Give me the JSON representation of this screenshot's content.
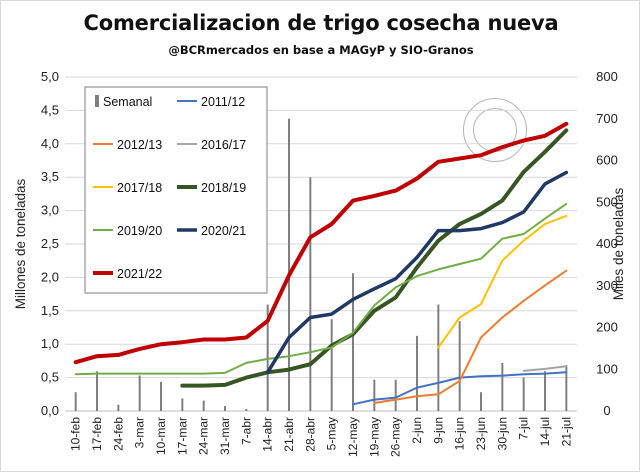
{
  "chart_data": {
    "type": "line",
    "title": "Comercializacion de trigo cosecha nueva",
    "subtitle": "@BCRmercados  en base a MAGyP y SIO-Granos",
    "ylabel": "Millones de toneladas",
    "y2label": "Miles de toneladas",
    "ylim": [
      0,
      5
    ],
    "y2lim": [
      0,
      800
    ],
    "yticks": [
      "0,0",
      "0,5",
      "1,0",
      "1,5",
      "2,0",
      "2,5",
      "3,0",
      "3,5",
      "4,0",
      "4,5",
      "5,0"
    ],
    "y2ticks": [
      "0",
      "100",
      "200",
      "300",
      "400",
      "500",
      "600",
      "700",
      "800"
    ],
    "categories": [
      "10-feb",
      "17-feb",
      "24-feb",
      "3-mar",
      "10-mar",
      "17-mar",
      "24-mar",
      "31-mar",
      "7-abr",
      "14-abr",
      "21-abr",
      "28-abr",
      "5-may",
      "12-may",
      "19-may",
      "26-may",
      "2-jun",
      "9-jun",
      "16-jun",
      "23-jun",
      "30-jun",
      "7-jul",
      "14-jul",
      "21-jul"
    ],
    "semanal": {
      "name": "Semanal",
      "axis": "right",
      "color": "#7f7f7f",
      "values": [
        45,
        95,
        15,
        85,
        70,
        30,
        25,
        12,
        5,
        255,
        700,
        560,
        220,
        330,
        75,
        75,
        180,
        255,
        215,
        45,
        115,
        80,
        95,
        110
      ]
    },
    "series": [
      {
        "name": "2011/12",
        "color": "#4472c4",
        "width": 2,
        "values": [
          null,
          null,
          null,
          null,
          null,
          null,
          null,
          null,
          null,
          null,
          null,
          null,
          null,
          0.1,
          0.17,
          0.2,
          0.35,
          0.42,
          0.5,
          0.52,
          0.53,
          0.55,
          0.56,
          0.58
        ]
      },
      {
        "name": "2012/13",
        "color": "#ed7d31",
        "width": 2,
        "values": [
          null,
          null,
          null,
          null,
          null,
          null,
          null,
          null,
          null,
          null,
          null,
          null,
          null,
          null,
          0.12,
          0.17,
          0.22,
          0.25,
          0.45,
          1.1,
          1.4,
          1.65,
          1.88,
          2.1
        ]
      },
      {
        "name": "2016/17",
        "color": "#a5a5a5",
        "width": 2,
        "values": [
          null,
          null,
          null,
          null,
          null,
          null,
          null,
          null,
          null,
          null,
          null,
          null,
          null,
          null,
          null,
          null,
          null,
          null,
          null,
          null,
          null,
          0.6,
          0.63,
          0.67
        ]
      },
      {
        "name": "2017/18",
        "color": "#ffc000",
        "width": 2,
        "values": [
          null,
          null,
          null,
          null,
          null,
          null,
          null,
          null,
          null,
          null,
          null,
          null,
          null,
          null,
          null,
          null,
          null,
          0.95,
          1.4,
          1.6,
          2.25,
          2.55,
          2.8,
          2.92
        ]
      },
      {
        "name": "2018/19",
        "color": "#375623",
        "width": 4,
        "values": [
          null,
          null,
          null,
          null,
          null,
          0.38,
          0.38,
          0.39,
          0.5,
          0.58,
          0.62,
          0.7,
          0.98,
          1.15,
          1.5,
          1.7,
          2.15,
          2.55,
          2.8,
          2.95,
          3.15,
          3.58,
          3.88,
          4.2
        ]
      },
      {
        "name": "2019/20",
        "color": "#70ad47",
        "width": 2,
        "values": [
          0.55,
          0.56,
          0.56,
          0.56,
          0.56,
          0.56,
          0.56,
          0.57,
          0.72,
          0.78,
          0.82,
          0.88,
          0.95,
          1.17,
          1.58,
          1.85,
          2.02,
          2.12,
          2.2,
          2.28,
          2.58,
          2.65,
          2.88,
          3.1
        ]
      },
      {
        "name": "2020/21",
        "color": "#203864",
        "width": 3.5,
        "values": [
          null,
          null,
          null,
          null,
          null,
          null,
          null,
          null,
          null,
          0.58,
          1.1,
          1.4,
          1.45,
          1.67,
          1.83,
          1.98,
          2.3,
          2.7,
          2.7,
          2.73,
          2.82,
          2.98,
          3.4,
          3.57
        ]
      },
      {
        "name": "2021/22",
        "color": "#c00000",
        "width": 4,
        "values": [
          0.73,
          0.82,
          0.84,
          0.93,
          1.0,
          1.03,
          1.07,
          1.07,
          1.1,
          1.35,
          2.03,
          2.6,
          2.8,
          3.15,
          3.22,
          3.3,
          3.48,
          3.73,
          3.78,
          3.83,
          3.95,
          4.05,
          4.12,
          4.3
        ]
      }
    ],
    "legend": {
      "placement": "top-left",
      "entries": [
        "Semanal",
        "2011/12",
        "2012/13",
        "2016/17",
        "2017/18",
        "2018/19",
        "2019/20",
        "2020/21",
        "2021/22"
      ]
    }
  }
}
